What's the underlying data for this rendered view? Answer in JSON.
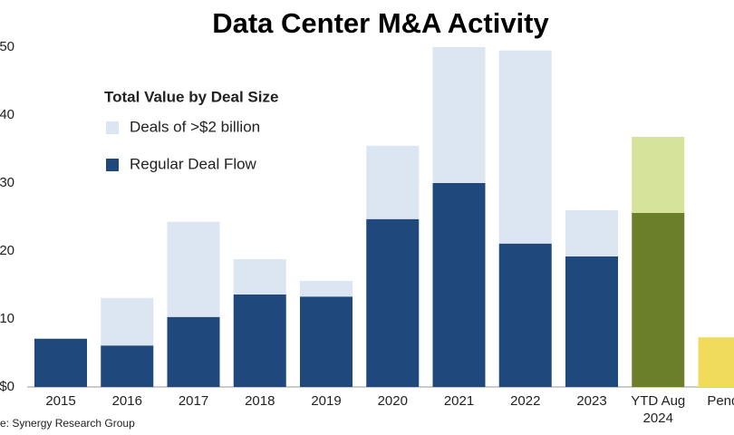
{
  "chart_data": {
    "type": "stacked_bar",
    "title": "Data Center M&A Activity",
    "source": "e: Synergy Research Group",
    "legend_title": "Total Value by Deal Size",
    "categories": [
      "2015",
      "2016",
      "2017",
      "2018",
      "2019",
      "2020",
      "2021",
      "2022",
      "2023",
      "YTD Aug\n2024",
      "Pendi"
    ],
    "series": [
      {
        "name": "Regular Deal Flow",
        "color": "#1f497d",
        "colors": [
          "#1f497d",
          "#1f497d",
          "#1f497d",
          "#1f497d",
          "#1f497d",
          "#1f497d",
          "#1f497d",
          "#1f497d",
          "#1f497d",
          "#6b7f2a",
          "#f0dc5a"
        ],
        "values": [
          7.1,
          6.1,
          10.3,
          13.6,
          13.3,
          24.7,
          30,
          21.1,
          19.2,
          25.6,
          7.3
        ]
      },
      {
        "name": "Deals of >$2 billion",
        "color": "#dce6f2",
        "colors": [
          "#dce6f2",
          "#dce6f2",
          "#dce6f2",
          "#dce6f2",
          "#dce6f2",
          "#dce6f2",
          "#dce6f2",
          "#dce6f2",
          "#dce6f2",
          "#d6e39a",
          "#dce6f2"
        ],
        "values": [
          null,
          7,
          14,
          5.2,
          2.3,
          10.8,
          20,
          28.4,
          6.8,
          11.2,
          null
        ]
      }
    ],
    "ylim": [
      0,
      50
    ],
    "yticks": [
      {
        "value": 0,
        "label": "$0"
      },
      10,
      20,
      30,
      40,
      50
    ],
    "grid": false,
    "legend": "upper left"
  }
}
